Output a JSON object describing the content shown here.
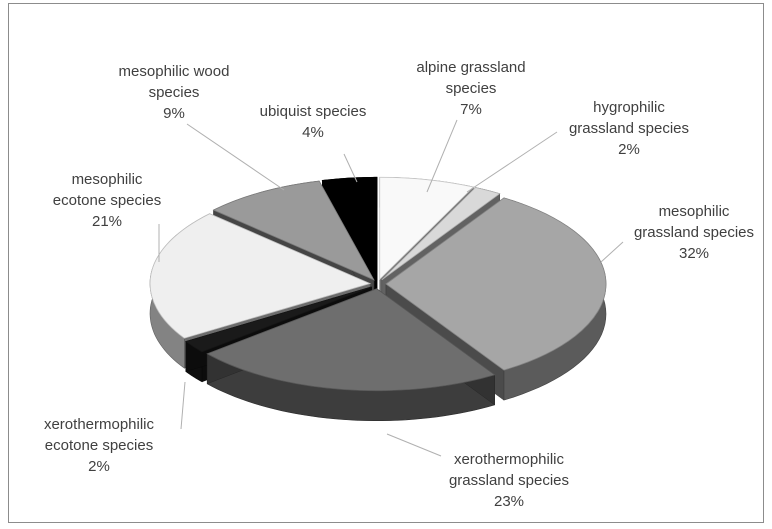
{
  "chart_data": {
    "type": "pie",
    "style": "3d-exploded",
    "title": "",
    "slices": [
      {
        "label": "alpine grassland species",
        "label_lines": [
          "alpine grassland",
          "species",
          "7%"
        ],
        "value": 7,
        "color": "#f9f9f9"
      },
      {
        "label": "hygrophilic grassland species",
        "label_lines": [
          "hygrophilic",
          "grassland species",
          "2%"
        ],
        "value": 2,
        "color": "#d9d9d9"
      },
      {
        "label": "mesophilic grassland species",
        "label_lines": [
          "mesophilic",
          "grassland species",
          "32%"
        ],
        "value": 32,
        "color": "#a6a6a6"
      },
      {
        "label": "xerothermophilic grassland species",
        "label_lines": [
          "xerothermophilic",
          "grassland species",
          "23%"
        ],
        "value": 23,
        "color": "#6e6e6e"
      },
      {
        "label": "xerothermophilic ecotone species",
        "label_lines": [
          "xerothermophilic",
          "ecotone species",
          "2%"
        ],
        "value": 2,
        "color": "#1a1a1a"
      },
      {
        "label": "mesophilic ecotone species",
        "label_lines": [
          "mesophilic",
          "ecotone species",
          "21%"
        ],
        "value": 21,
        "color": "#efefef"
      },
      {
        "label": "mesophilic wood species",
        "label_lines": [
          "mesophilic wood",
          "species",
          "9%"
        ],
        "value": 9,
        "color": "#9a9a9a"
      },
      {
        "label": "ubiquist species",
        "label_lines": [
          "ubiquist species",
          "4%"
        ],
        "value": 4,
        "color": "#000000"
      }
    ],
    "legend": "none",
    "data_labels": "outside-with-leader-lines"
  }
}
